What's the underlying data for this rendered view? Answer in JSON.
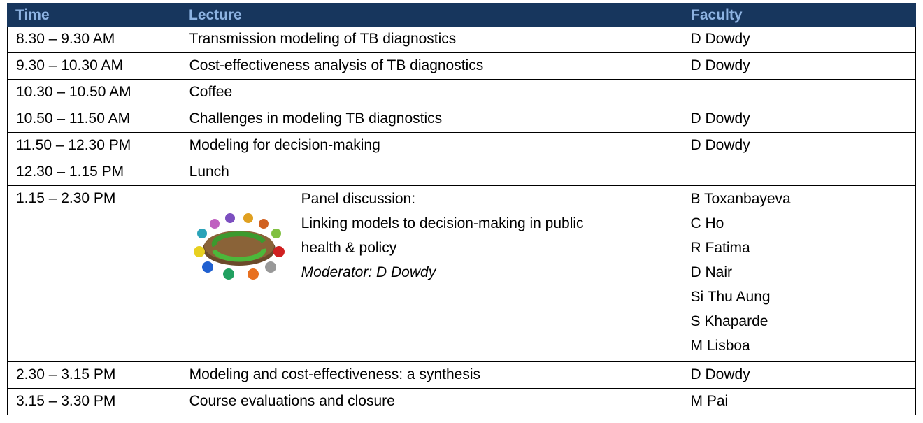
{
  "table": {
    "header": [
      "Time",
      "Lecture",
      "Faculty"
    ],
    "rows": [
      {
        "time": "8.30 – 9.30 AM",
        "lecture": "Transmission modeling of TB diagnostics",
        "faculty": "D Dowdy"
      },
      {
        "time": "9.30 – 10.30 AM",
        "lecture": "Cost-effectiveness analysis of TB diagnostics",
        "faculty": "D Dowdy"
      },
      {
        "time": "10.30 – 10.50 AM",
        "lecture": "Coffee"
      },
      {
        "time": "10.50 – 11.50 AM",
        "lecture": "Challenges in modeling TB diagnostics",
        "faculty": "D Dowdy"
      },
      {
        "time": "11.50 – 12.30 PM",
        "lecture": "Modeling for decision-making",
        "faculty": "D Dowdy"
      },
      {
        "time": "12.30 – 1.15 PM",
        "lecture": "Lunch"
      },
      {
        "time": "1.15 – 2.30 PM",
        "panel": {
          "lines": [
            "Panel discussion:",
            "Linking models to decision-making in public",
            "health & policy"
          ],
          "moderator": "Moderator: D Dowdy"
        },
        "panelists": [
          "B Toxanbayeva",
          "C Ho",
          "R Fatima",
          "D Nair",
          "Si Thu Aung",
          "S Khaparde",
          "M Lisboa"
        ]
      },
      {
        "time": "2.30 – 3.15 PM",
        "lecture": "Modeling and cost-effectiveness: a synthesis",
        "faculty": "D Dowdy"
      },
      {
        "time": "3.15 – 3.30 PM",
        "lecture": "Course evaluations and closure",
        "faculty": "M Pai"
      }
    ]
  }
}
